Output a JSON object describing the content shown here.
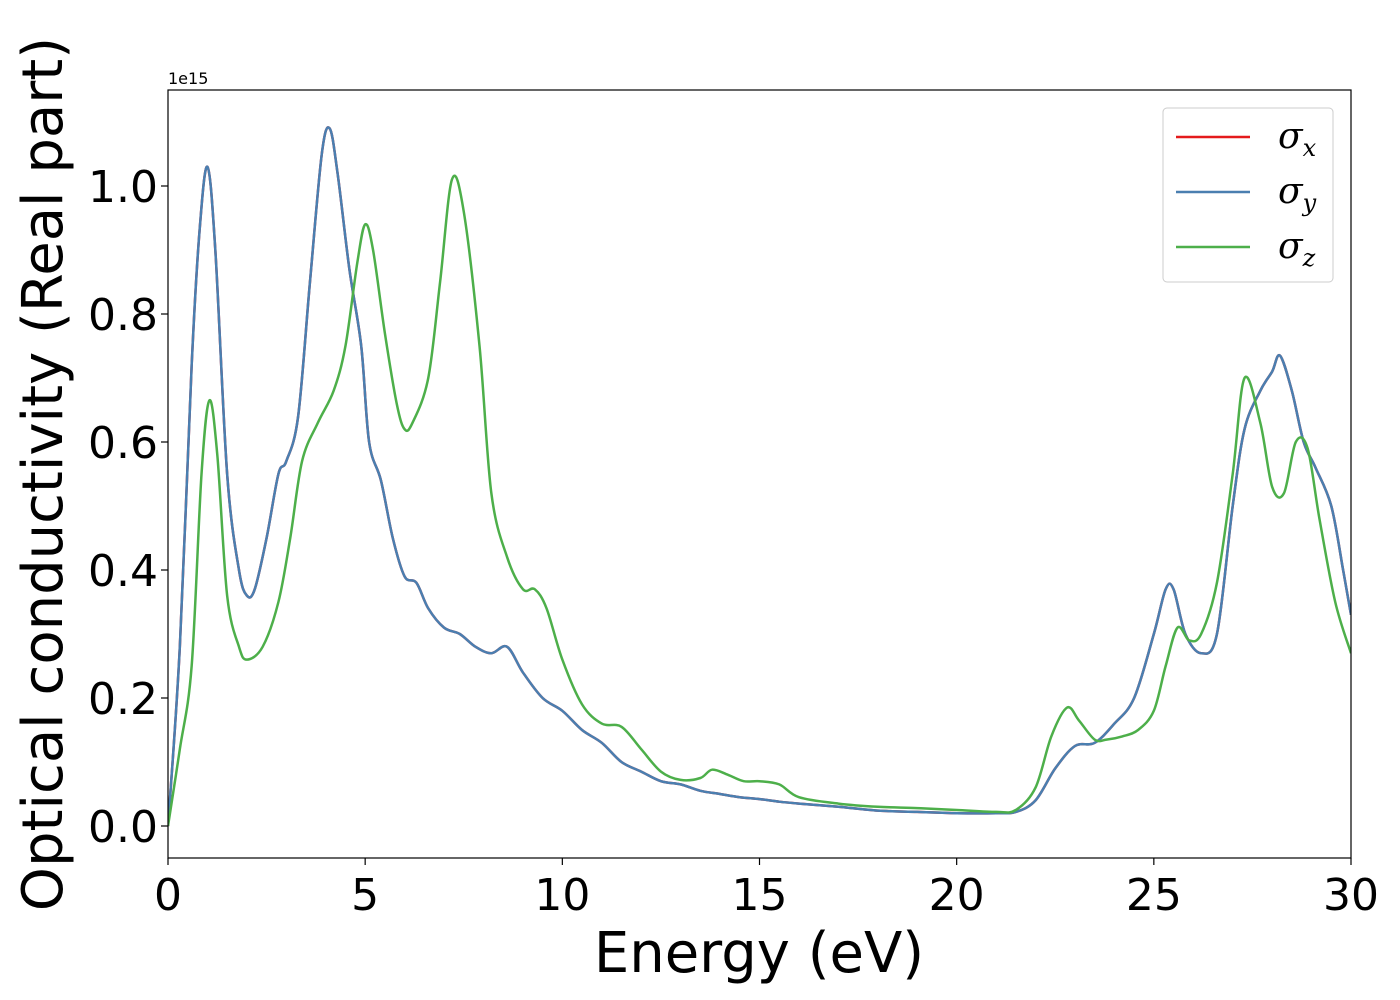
{
  "chart_data": {
    "type": "line",
    "xlabel": "Energy (eV)",
    "ylabel": "Optical conductivity (Real part)",
    "y_offset_label": "1e15",
    "xlim": [
      0,
      30
    ],
    "ylim": [
      -0.05,
      1.15
    ],
    "xticks": [
      0,
      5,
      10,
      15,
      20,
      25,
      30
    ],
    "xtick_labels": [
      "0",
      "5",
      "10",
      "15",
      "20",
      "25",
      "30"
    ],
    "yticks": [
      0.0,
      0.2,
      0.4,
      0.6,
      0.8,
      1.0
    ],
    "ytick_labels": [
      "0.0",
      "0.2",
      "0.4",
      "0.6",
      "0.8",
      "1.0"
    ],
    "grid": false,
    "legend_position": "top-right",
    "series": [
      {
        "name": "σx",
        "legend_symbol": "σ",
        "legend_subscript": "x",
        "color": "#e41a1c",
        "x": [
          0,
          0.3,
          0.6,
          0.8,
          1.0,
          1.2,
          1.5,
          1.8,
          2.0,
          2.2,
          2.5,
          2.8,
          3.0,
          3.3,
          3.6,
          3.9,
          4.1,
          4.3,
          4.6,
          4.9,
          5.1,
          5.4,
          5.7,
          6.0,
          6.3,
          6.6,
          7.0,
          7.4,
          7.8,
          8.2,
          8.6,
          9.0,
          9.5,
          10.0,
          10.5,
          11.0,
          11.5,
          12.0,
          12.5,
          13.0,
          13.5,
          14.0,
          14.5,
          15.0,
          15.5,
          16.0,
          17.0,
          18.0,
          19.0,
          20.0,
          21.0,
          21.5,
          22.0,
          22.5,
          23.0,
          23.5,
          24.0,
          24.5,
          25.0,
          25.3,
          25.5,
          25.8,
          26.2,
          26.6,
          27.0,
          27.3,
          27.7,
          28.0,
          28.2,
          28.5,
          28.8,
          29.1,
          29.5,
          29.8,
          30.0
        ],
        "values": [
          0.0,
          0.28,
          0.72,
          0.93,
          1.03,
          0.9,
          0.55,
          0.4,
          0.36,
          0.37,
          0.45,
          0.55,
          0.57,
          0.64,
          0.85,
          1.05,
          1.09,
          1.02,
          0.87,
          0.75,
          0.6,
          0.54,
          0.45,
          0.39,
          0.38,
          0.34,
          0.31,
          0.3,
          0.28,
          0.27,
          0.28,
          0.24,
          0.2,
          0.18,
          0.15,
          0.13,
          0.1,
          0.085,
          0.07,
          0.065,
          0.055,
          0.05,
          0.045,
          0.042,
          0.038,
          0.035,
          0.03,
          0.024,
          0.022,
          0.02,
          0.02,
          0.022,
          0.04,
          0.09,
          0.125,
          0.13,
          0.16,
          0.2,
          0.3,
          0.37,
          0.37,
          0.3,
          0.27,
          0.3,
          0.5,
          0.62,
          0.68,
          0.71,
          0.735,
          0.68,
          0.6,
          0.56,
          0.5,
          0.4,
          0.33
        ]
      },
      {
        "name": "σy",
        "legend_symbol": "σ",
        "legend_subscript": "y",
        "color": "#4a7fb0",
        "x": [
          0,
          0.3,
          0.6,
          0.8,
          1.0,
          1.2,
          1.5,
          1.8,
          2.0,
          2.2,
          2.5,
          2.8,
          3.0,
          3.3,
          3.6,
          3.9,
          4.1,
          4.3,
          4.6,
          4.9,
          5.1,
          5.4,
          5.7,
          6.0,
          6.3,
          6.6,
          7.0,
          7.4,
          7.8,
          8.2,
          8.6,
          9.0,
          9.5,
          10.0,
          10.5,
          11.0,
          11.5,
          12.0,
          12.5,
          13.0,
          13.5,
          14.0,
          14.5,
          15.0,
          15.5,
          16.0,
          17.0,
          18.0,
          19.0,
          20.0,
          21.0,
          21.5,
          22.0,
          22.5,
          23.0,
          23.5,
          24.0,
          24.5,
          25.0,
          25.3,
          25.5,
          25.8,
          26.2,
          26.6,
          27.0,
          27.3,
          27.7,
          28.0,
          28.2,
          28.5,
          28.8,
          29.1,
          29.5,
          29.8,
          30.0
        ],
        "values": [
          0.0,
          0.28,
          0.72,
          0.93,
          1.03,
          0.9,
          0.55,
          0.4,
          0.36,
          0.37,
          0.45,
          0.55,
          0.57,
          0.64,
          0.85,
          1.05,
          1.09,
          1.02,
          0.87,
          0.75,
          0.6,
          0.54,
          0.45,
          0.39,
          0.38,
          0.34,
          0.31,
          0.3,
          0.28,
          0.27,
          0.28,
          0.24,
          0.2,
          0.18,
          0.15,
          0.13,
          0.1,
          0.085,
          0.07,
          0.065,
          0.055,
          0.05,
          0.045,
          0.042,
          0.038,
          0.035,
          0.03,
          0.024,
          0.022,
          0.02,
          0.02,
          0.022,
          0.04,
          0.09,
          0.125,
          0.13,
          0.16,
          0.2,
          0.3,
          0.37,
          0.37,
          0.3,
          0.27,
          0.3,
          0.5,
          0.62,
          0.68,
          0.71,
          0.735,
          0.68,
          0.6,
          0.56,
          0.5,
          0.4,
          0.33
        ]
      },
      {
        "name": "σz",
        "legend_symbol": "σ",
        "legend_subscript": "z",
        "color": "#4daf4a",
        "x": [
          0,
          0.3,
          0.6,
          0.85,
          1.05,
          1.25,
          1.5,
          1.8,
          2.0,
          2.4,
          2.8,
          3.1,
          3.4,
          3.8,
          4.2,
          4.5,
          4.8,
          5.0,
          5.2,
          5.5,
          5.8,
          6.0,
          6.2,
          6.6,
          6.9,
          7.2,
          7.5,
          7.9,
          8.2,
          8.6,
          9.0,
          9.3,
          9.6,
          10.0,
          10.5,
          11.0,
          11.5,
          12.0,
          12.5,
          13.0,
          13.5,
          13.8,
          14.2,
          14.6,
          15.0,
          15.5,
          16.0,
          17.0,
          18.0,
          19.0,
          20.0,
          21.0,
          21.5,
          22.0,
          22.4,
          22.8,
          23.1,
          23.5,
          23.8,
          24.2,
          24.6,
          25.0,
          25.3,
          25.6,
          25.9,
          26.2,
          26.6,
          27.0,
          27.3,
          27.7,
          28.0,
          28.3,
          28.6,
          28.9,
          29.2,
          29.6,
          30.0
        ],
        "values": [
          0.0,
          0.12,
          0.25,
          0.55,
          0.665,
          0.58,
          0.36,
          0.28,
          0.26,
          0.28,
          0.35,
          0.45,
          0.57,
          0.63,
          0.68,
          0.75,
          0.88,
          0.94,
          0.9,
          0.77,
          0.66,
          0.62,
          0.63,
          0.7,
          0.85,
          1.01,
          0.96,
          0.75,
          0.52,
          0.42,
          0.37,
          0.37,
          0.34,
          0.26,
          0.19,
          0.16,
          0.155,
          0.12,
          0.085,
          0.072,
          0.075,
          0.088,
          0.08,
          0.07,
          0.07,
          0.065,
          0.045,
          0.035,
          0.03,
          0.028,
          0.025,
          0.022,
          0.025,
          0.06,
          0.14,
          0.185,
          0.165,
          0.135,
          0.135,
          0.14,
          0.15,
          0.18,
          0.25,
          0.31,
          0.29,
          0.3,
          0.38,
          0.55,
          0.7,
          0.63,
          0.53,
          0.52,
          0.6,
          0.59,
          0.48,
          0.35,
          0.27
        ]
      }
    ]
  }
}
